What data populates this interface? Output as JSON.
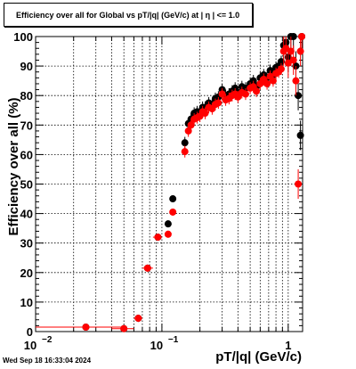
{
  "chart_data": {
    "type": "scatter",
    "title": "Efficiency over all for Global vs pT/|q| (GeV/c) at |  η  | <= 1.0",
    "xlabel": "pT/|q| (GeV/c)",
    "ylabel": "Efficiency over all (%)",
    "xscale": "log",
    "xlim": [
      0.01,
      1.3
    ],
    "ylim": [
      0,
      100
    ],
    "x_tick_labels": [
      {
        "value": 0.01,
        "base": "10",
        "exp": "−2"
      },
      {
        "value": 0.1,
        "base": "10",
        "exp": "−1"
      },
      {
        "value": 1,
        "base": "1",
        "exp": ""
      }
    ],
    "y_ticks": [
      0,
      10,
      20,
      30,
      40,
      50,
      60,
      70,
      80,
      90,
      100
    ],
    "grid": true,
    "series": [
      {
        "color": "#000000",
        "points": [
          [
            0.025,
            1.5
          ],
          [
            0.05,
            1.0
          ],
          [
            0.065,
            4.5
          ],
          [
            0.077,
            21.5
          ],
          [
            0.093,
            32.0
          ],
          [
            0.112,
            36.5
          ],
          [
            0.122,
            45.0
          ],
          [
            0.152,
            64.0
          ],
          [
            0.162,
            70.5
          ],
          [
            0.17,
            72.0
          ],
          [
            0.18,
            74.0
          ],
          [
            0.19,
            74.5
          ],
          [
            0.2,
            74.5
          ],
          [
            0.21,
            76.0
          ],
          [
            0.22,
            76.0
          ],
          [
            0.235,
            77.5
          ],
          [
            0.25,
            77.0
          ],
          [
            0.265,
            79.0
          ],
          [
            0.28,
            79.5
          ],
          [
            0.3,
            82.0
          ],
          [
            0.32,
            80.0
          ],
          [
            0.34,
            80.5
          ],
          [
            0.36,
            81.5
          ],
          [
            0.38,
            82.5
          ],
          [
            0.4,
            81.0
          ],
          [
            0.43,
            83.0
          ],
          [
            0.46,
            82.5
          ],
          [
            0.5,
            84.0
          ],
          [
            0.53,
            85.0
          ],
          [
            0.56,
            83.0
          ],
          [
            0.6,
            86.0
          ],
          [
            0.64,
            87.0
          ],
          [
            0.68,
            86.0
          ],
          [
            0.72,
            88.5
          ],
          [
            0.76,
            87.0
          ],
          [
            0.8,
            89.5
          ],
          [
            0.84,
            90.0
          ],
          [
            0.88,
            91.5
          ],
          [
            0.92,
            97.0
          ],
          [
            0.96,
            98.0
          ],
          [
            1.0,
            93.0
          ],
          [
            1.05,
            100.0
          ],
          [
            1.1,
            100.0
          ],
          [
            1.15,
            90.0
          ],
          [
            1.2,
            80.0
          ],
          [
            1.25,
            66.5
          ],
          [
            1.28,
            100.0
          ]
        ]
      },
      {
        "color": "#ff0000",
        "points": [
          [
            0.025,
            1.5
          ],
          [
            0.05,
            1.0
          ],
          [
            0.065,
            4.5
          ],
          [
            0.077,
            21.5
          ],
          [
            0.093,
            32.0
          ],
          [
            0.112,
            33.0
          ],
          [
            0.122,
            40.5
          ],
          [
            0.152,
            61.0
          ],
          [
            0.162,
            68.0
          ],
          [
            0.17,
            70.0
          ],
          [
            0.18,
            72.0
          ],
          [
            0.19,
            72.5
          ],
          [
            0.2,
            73.0
          ],
          [
            0.21,
            74.5
          ],
          [
            0.22,
            74.0
          ],
          [
            0.235,
            76.0
          ],
          [
            0.25,
            75.5
          ],
          [
            0.265,
            77.0
          ],
          [
            0.28,
            77.5
          ],
          [
            0.3,
            80.5
          ],
          [
            0.32,
            78.5
          ],
          [
            0.34,
            79.0
          ],
          [
            0.36,
            80.0
          ],
          [
            0.38,
            80.5
          ],
          [
            0.4,
            79.5
          ],
          [
            0.43,
            81.0
          ],
          [
            0.46,
            80.5
          ],
          [
            0.5,
            82.5
          ],
          [
            0.53,
            83.0
          ],
          [
            0.56,
            81.5
          ],
          [
            0.6,
            84.0
          ],
          [
            0.64,
            85.5
          ],
          [
            0.68,
            84.0
          ],
          [
            0.72,
            86.5
          ],
          [
            0.76,
            85.0
          ],
          [
            0.8,
            87.5
          ],
          [
            0.84,
            88.0
          ],
          [
            0.88,
            89.0
          ],
          [
            0.92,
            95.0
          ],
          [
            0.96,
            96.0
          ],
          [
            1.0,
            91.0
          ],
          [
            1.05,
            95.0
          ],
          [
            1.1,
            92.0
          ],
          [
            1.15,
            85.0
          ],
          [
            1.2,
            50.0
          ],
          [
            1.25,
            95.0
          ],
          [
            1.28,
            100.0
          ]
        ]
      }
    ]
  },
  "timestamp": "Wed Sep 18 16:33:04 2024"
}
